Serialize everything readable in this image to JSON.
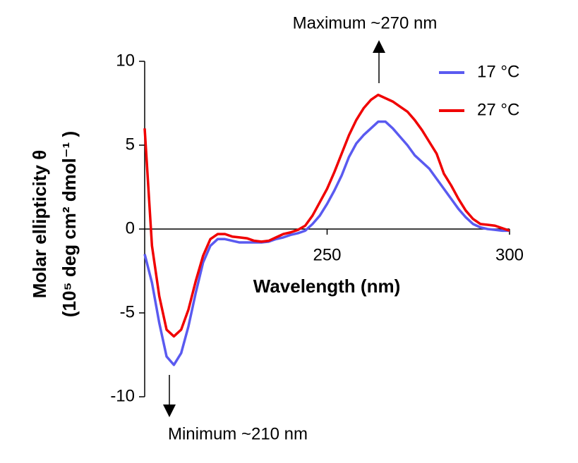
{
  "chart_data": {
    "type": "line",
    "xlabel": "Wavelength (nm)",
    "ylabel": [
      "Molar ellipticity θ",
      "(10⁵ deg cm² dmol⁻¹ )"
    ],
    "annotations": [
      "Maximum ~270 nm",
      "Minimum ~210 nm"
    ],
    "x": [
      200,
      202,
      204,
      206,
      208,
      210,
      212,
      214,
      216,
      218,
      220,
      222,
      224,
      226,
      228,
      230,
      232,
      234,
      236,
      238,
      240,
      242,
      244,
      246,
      248,
      250,
      252,
      254,
      256,
      258,
      260,
      262,
      264,
      266,
      268,
      270,
      272,
      274,
      276,
      278,
      280,
      282,
      284,
      286,
      288,
      290,
      292,
      294,
      296,
      298,
      300
    ],
    "series": [
      {
        "name": "17 °C",
        "color": "#5a5af0",
        "values": [
          -1.5,
          -3.2,
          -5.6,
          -7.6,
          -8.1,
          -7.4,
          -5.8,
          -3.8,
          -2.0,
          -1.0,
          -0.6,
          -0.6,
          -0.7,
          -0.8,
          -0.8,
          -0.8,
          -0.8,
          -0.75,
          -0.6,
          -0.5,
          -0.35,
          -0.25,
          -0.1,
          0.3,
          0.8,
          1.5,
          2.3,
          3.2,
          4.3,
          5.1,
          5.6,
          6.0,
          6.4,
          6.4,
          6.0,
          5.5,
          5.0,
          4.4,
          4.0,
          3.6,
          3.0,
          2.4,
          1.8,
          1.2,
          0.7,
          0.3,
          0.1,
          0.0,
          -0.05,
          -0.1,
          -0.1
        ]
      },
      {
        "name": "27 °C",
        "color": "#f00000",
        "values": [
          6.0,
          -1.0,
          -4.0,
          -6.0,
          -6.4,
          -6.0,
          -4.8,
          -3.1,
          -1.6,
          -0.6,
          -0.3,
          -0.3,
          -0.45,
          -0.5,
          -0.55,
          -0.7,
          -0.75,
          -0.7,
          -0.5,
          -0.3,
          -0.2,
          -0.05,
          0.2,
          0.8,
          1.6,
          2.4,
          3.4,
          4.5,
          5.6,
          6.5,
          7.2,
          7.7,
          8.0,
          7.8,
          7.6,
          7.3,
          7.0,
          6.5,
          5.9,
          5.2,
          4.5,
          3.3,
          2.6,
          1.8,
          1.1,
          0.6,
          0.3,
          0.25,
          0.2,
          0.05,
          -0.1
        ]
      }
    ],
    "xlim": [
      200,
      300
    ],
    "xticks": [
      250,
      300
    ],
    "ylim": [
      -10,
      10
    ],
    "yticks": [
      -10,
      -5,
      0,
      5,
      10
    ],
    "legend": "upper right"
  }
}
